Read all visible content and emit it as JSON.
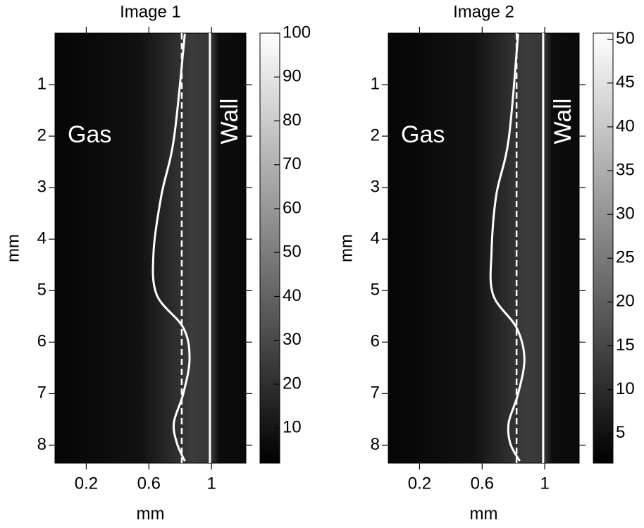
{
  "chart_data": [
    {
      "type": "image",
      "title": "Image 1",
      "xlabel": "mm",
      "ylabel": "mm",
      "xlim": [
        0,
        1.22
      ],
      "xticks": [
        0.2,
        0.6,
        1
      ],
      "ylim": [
        0,
        8.35
      ],
      "y_inverted": true,
      "yticks": [
        1,
        2,
        3,
        4,
        5,
        6,
        7,
        8
      ],
      "colormap": "gray",
      "clim": [
        2,
        100
      ],
      "cticks": [
        10,
        20,
        30,
        40,
        50,
        60,
        70,
        80,
        90,
        100
      ],
      "annotations": [
        "Gas",
        "Wall"
      ],
      "wall_x": 0.99,
      "interface_x": 0.81,
      "profile": {
        "x": [
          0.83,
          0.76,
          0.68,
          0.63,
          0.65,
          0.82,
          0.86,
          0.82,
          0.76,
          0.78,
          0.83
        ],
        "y": [
          0.01,
          2.05,
          3.15,
          4.25,
          5.08,
          5.72,
          6.32,
          7.0,
          7.56,
          7.97,
          8.31
        ]
      }
    },
    {
      "type": "image",
      "title": "Image 2",
      "xlabel": "mm",
      "ylabel": "mm",
      "xlim": [
        0,
        1.22
      ],
      "xticks": [
        0.2,
        0.6,
        1
      ],
      "ylim": [
        0,
        8.35
      ],
      "y_inverted": true,
      "yticks": [
        1,
        2,
        3,
        4,
        5,
        6,
        7,
        8
      ],
      "colormap": "gray",
      "clim": [
        1.6,
        50.7
      ],
      "cticks": [
        5,
        10,
        15,
        20,
        25,
        30,
        35,
        40,
        45,
        50
      ],
      "annotations": [
        "Gas",
        "Wall"
      ],
      "wall_x": 0.99,
      "interface_x": 0.82,
      "profile": {
        "x": [
          0.83,
          0.77,
          0.69,
          0.66,
          0.67,
          0.82,
          0.87,
          0.83,
          0.77,
          0.78,
          0.84
        ],
        "y": [
          0.01,
          2.05,
          3.15,
          4.25,
          5.08,
          5.72,
          6.32,
          7.0,
          7.56,
          7.97,
          8.31
        ]
      }
    }
  ]
}
